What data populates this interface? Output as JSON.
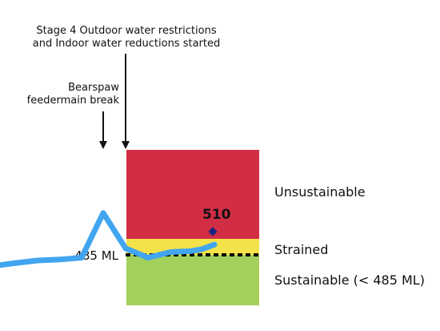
{
  "chart_data": {
    "type": "line",
    "series": [
      {
        "values": [
          474,
          476,
          479,
          480,
          482,
          530,
          492,
          482,
          488,
          489,
          491,
          496
        ]
      }
    ],
    "current_value": 510,
    "current_value_label": "510",
    "threshold_label": "485 ML",
    "zones": [
      {
        "label": "Unsustainable",
        "color": "#d12e45"
      },
      {
        "label": "Strained",
        "color": "#f4e24b"
      },
      {
        "label": "Sustainable (< 485 ML)",
        "color": "#a3d05b"
      }
    ],
    "annotations": [
      {
        "lines": [
          "Bearspaw",
          "feedermain break"
        ]
      },
      {
        "lines": [
          "Stage 4 Outdoor water restrictions",
          "and Indoor water reductions started"
        ]
      }
    ],
    "colors": {
      "line": "#42a5f0",
      "marker": "#1a237e",
      "threshold": "#000000",
      "arrow": "#111111"
    }
  }
}
